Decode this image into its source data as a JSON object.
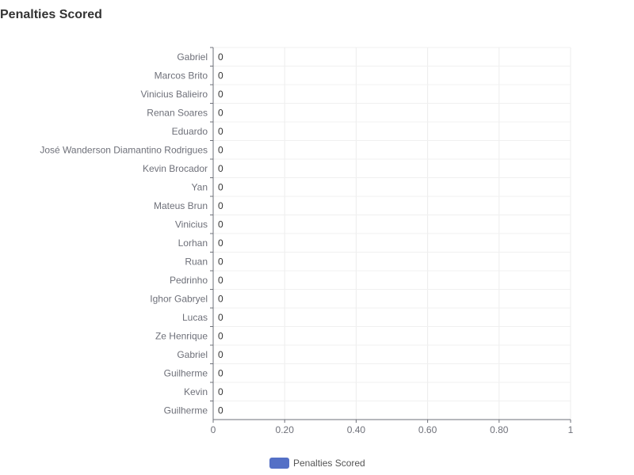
{
  "chart_data": {
    "type": "bar",
    "orientation": "horizontal",
    "title": "Penalties Scored",
    "categories": [
      "Gabriel",
      "Marcos Brito",
      "Vinicius Balieiro",
      "Renan Soares",
      "Eduardo",
      "José Wanderson Diamantino Rodrigues",
      "Kevin Brocador",
      "Yan",
      "Mateus Brun",
      "Vinicius",
      "Lorhan",
      "Ruan",
      "Pedrinho",
      "Ighor Gabryel",
      "Lucas",
      "Ze Henrique",
      "Gabriel",
      "Guilherme",
      "Kevin",
      "Guilherme"
    ],
    "series": [
      {
        "name": "Penalties Scored",
        "values": [
          0,
          0,
          0,
          0,
          0,
          0,
          0,
          0,
          0,
          0,
          0,
          0,
          0,
          0,
          0,
          0,
          0,
          0,
          0,
          0
        ],
        "color": "#5470c6"
      }
    ],
    "value_labels": [
      "0",
      "0",
      "0",
      "0",
      "0",
      "0",
      "0",
      "0",
      "0",
      "0",
      "0",
      "0",
      "0",
      "0",
      "0",
      "0",
      "0",
      "0",
      "0",
      "0"
    ],
    "xlim": [
      0,
      1
    ],
    "x_ticks": [
      0,
      0.2,
      0.4,
      0.6,
      0.8,
      1
    ],
    "x_tick_labels": [
      "0",
      "0.20",
      "0.40",
      "0.60",
      "0.80",
      "1"
    ],
    "xlabel": "",
    "ylabel": "",
    "grid": true,
    "legend_position": "bottom-center"
  }
}
